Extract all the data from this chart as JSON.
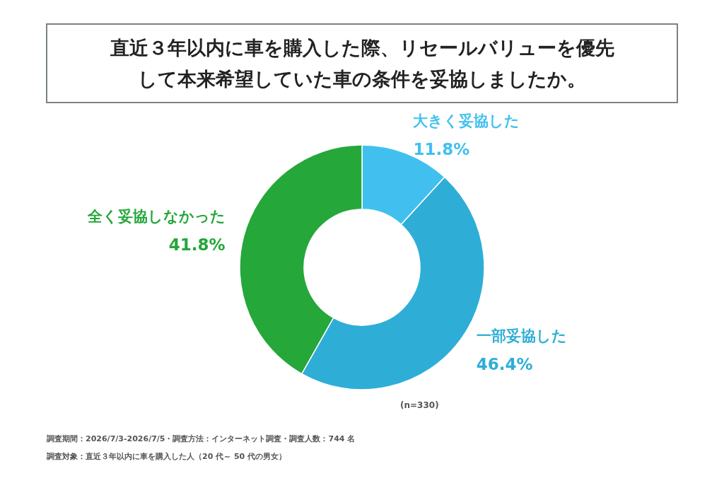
{
  "chart_data": {
    "type": "donut",
    "title": "直近３年以内に車を購入した際、リセールバリューを優先して本来希望していた車の条件を妥協しましたか。",
    "categories": [
      "大きく妥協した",
      "一部妥協した",
      "全く妥協しなかった"
    ],
    "colors": [
      "#41c0ef",
      "#2eaed6",
      "#25a73a"
    ],
    "value_labels": [
      "11.8%",
      "46.4%",
      "41.8%"
    ],
    "annotations": [
      "(n=330)",
      "調査期間：2026/7/3-2026/7/5・調査方法：インターネット調査・調査人数：744 名",
      "調査対象：直近３年以内に車を購入した人（20 代～ 50 代の男女）"
    ],
    "values": [
      11.8,
      46.4,
      41.8
    ]
  }
}
